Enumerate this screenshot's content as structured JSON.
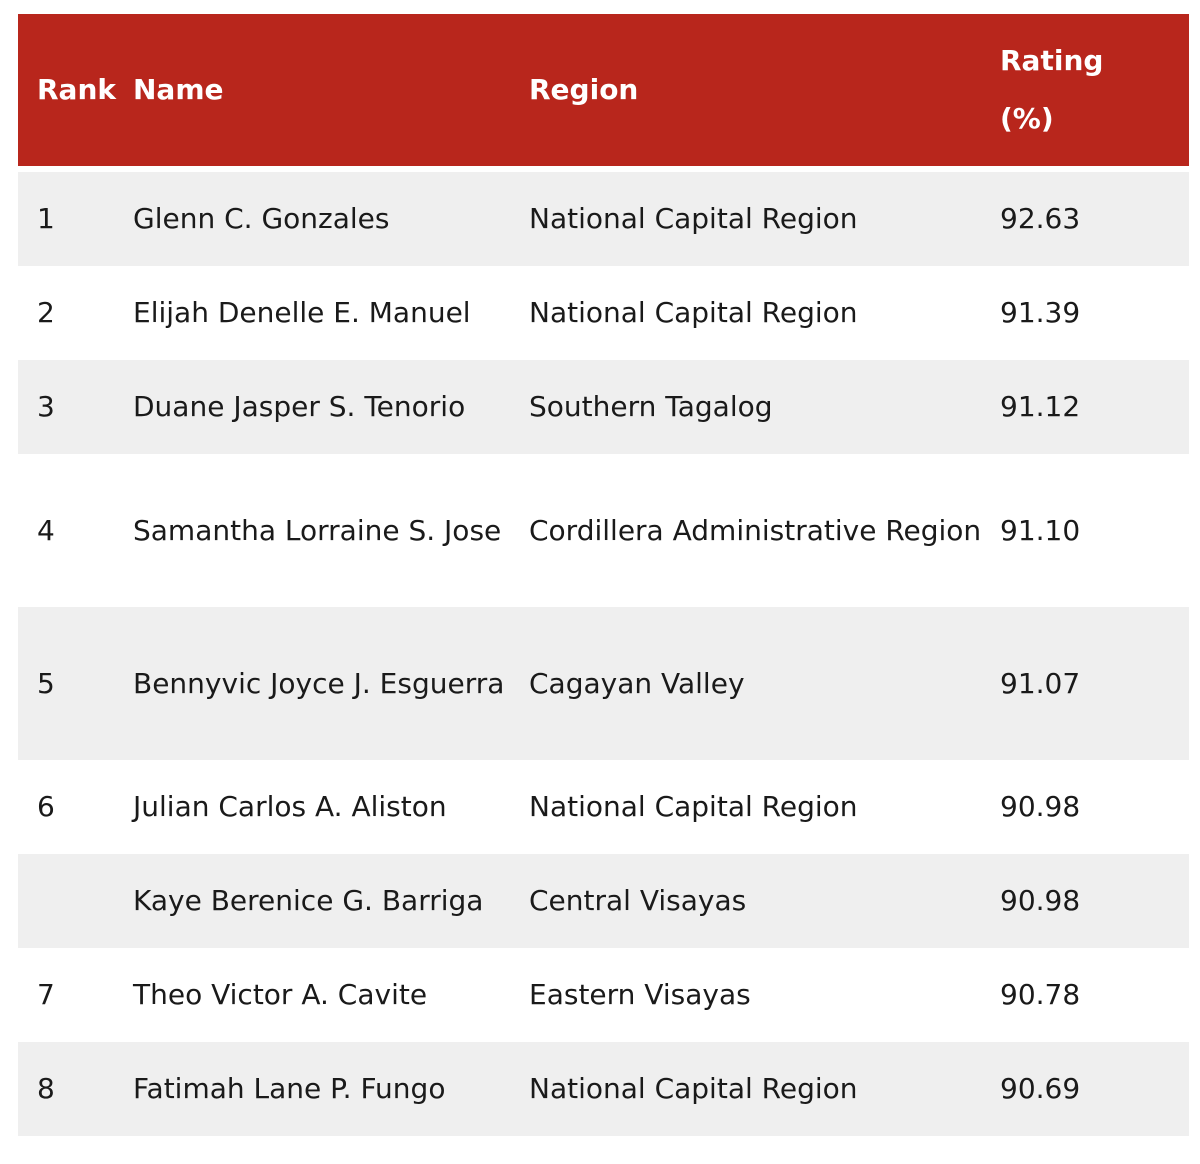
{
  "table": {
    "headers": {
      "rank": "Rank",
      "name": "Name",
      "region": "Region",
      "rating_line1": "Rating",
      "rating_line2": "(%)"
    },
    "rows": [
      {
        "rank": "1",
        "name": "Glenn C. Gonzales",
        "region": "National Capital Region",
        "rating": "92.63"
      },
      {
        "rank": "2",
        "name": "Elijah Denelle E. Manuel",
        "region": "National Capital Region",
        "rating": "91.39"
      },
      {
        "rank": "3",
        "name": "Duane Jasper S. Tenorio",
        "region": "Southern Tagalog",
        "rating": "91.12"
      },
      {
        "rank": "4",
        "name": "Samantha Lorraine S. Jose",
        "region": "Cordillera Administrative Region",
        "rating": "91.10"
      },
      {
        "rank": "5",
        "name": "Bennyvic Joyce J. Esguerra",
        "region": "Cagayan Valley",
        "rating": "91.07"
      },
      {
        "rank": "6",
        "name": "Julian Carlos A. Aliston",
        "region": "National Capital Region",
        "rating": "90.98"
      },
      {
        "rank": "",
        "name": "Kaye Berenice G. Barriga",
        "region": "Central Visayas",
        "rating": "90.98"
      },
      {
        "rank": "7",
        "name": "Theo Victor A. Cavite",
        "region": "Eastern Visayas",
        "rating": "90.78"
      },
      {
        "rank": "8",
        "name": "Fatimah Lane P. Fungo",
        "region": "National Capital Region",
        "rating": "90.69"
      }
    ]
  }
}
